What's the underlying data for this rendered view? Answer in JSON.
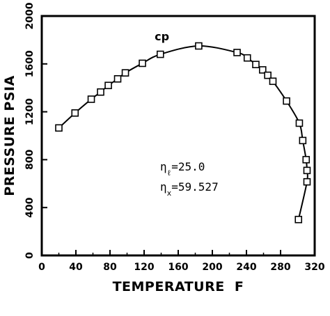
{
  "chart_data": {
    "type": "scatter",
    "title": "",
    "xlabel": "TEMPERATURE  F",
    "ylabel": "PRESSURE PSIA",
    "xlim": [
      0,
      320
    ],
    "ylim": [
      0,
      2000
    ],
    "x_ticks": [
      "0",
      "40",
      "80",
      "120",
      "160",
      "200",
      "240",
      "280",
      "320"
    ],
    "y_ticks": [
      "0",
      "400",
      "800",
      "1200",
      "1600",
      "2000"
    ],
    "grid": false,
    "critical_point": {
      "label": "cp",
      "x": 183,
      "y": 1750
    },
    "annotations": [
      "ηℓ=25.0",
      "ηx=59.527"
    ],
    "series": [
      {
        "marker": "square",
        "points": [
          {
            "x": 20,
            "y": 1065
          },
          {
            "x": 39,
            "y": 1190
          },
          {
            "x": 58,
            "y": 1305
          },
          {
            "x": 69,
            "y": 1365
          },
          {
            "x": 78,
            "y": 1420
          },
          {
            "x": 89,
            "y": 1475
          },
          {
            "x": 98,
            "y": 1525
          },
          {
            "x": 118,
            "y": 1605
          },
          {
            "x": 139,
            "y": 1680
          },
          {
            "x": 184,
            "y": 1750
          },
          {
            "x": 229,
            "y": 1695
          },
          {
            "x": 241,
            "y": 1650
          },
          {
            "x": 251,
            "y": 1595
          },
          {
            "x": 259,
            "y": 1550
          },
          {
            "x": 265,
            "y": 1505
          },
          {
            "x": 271,
            "y": 1455
          },
          {
            "x": 287,
            "y": 1290
          },
          {
            "x": 302,
            "y": 1105
          },
          {
            "x": 306,
            "y": 960
          },
          {
            "x": 310,
            "y": 800
          },
          {
            "x": 311,
            "y": 710
          },
          {
            "x": 311,
            "y": 615
          },
          {
            "x": 301,
            "y": 300
          }
        ]
      }
    ]
  }
}
